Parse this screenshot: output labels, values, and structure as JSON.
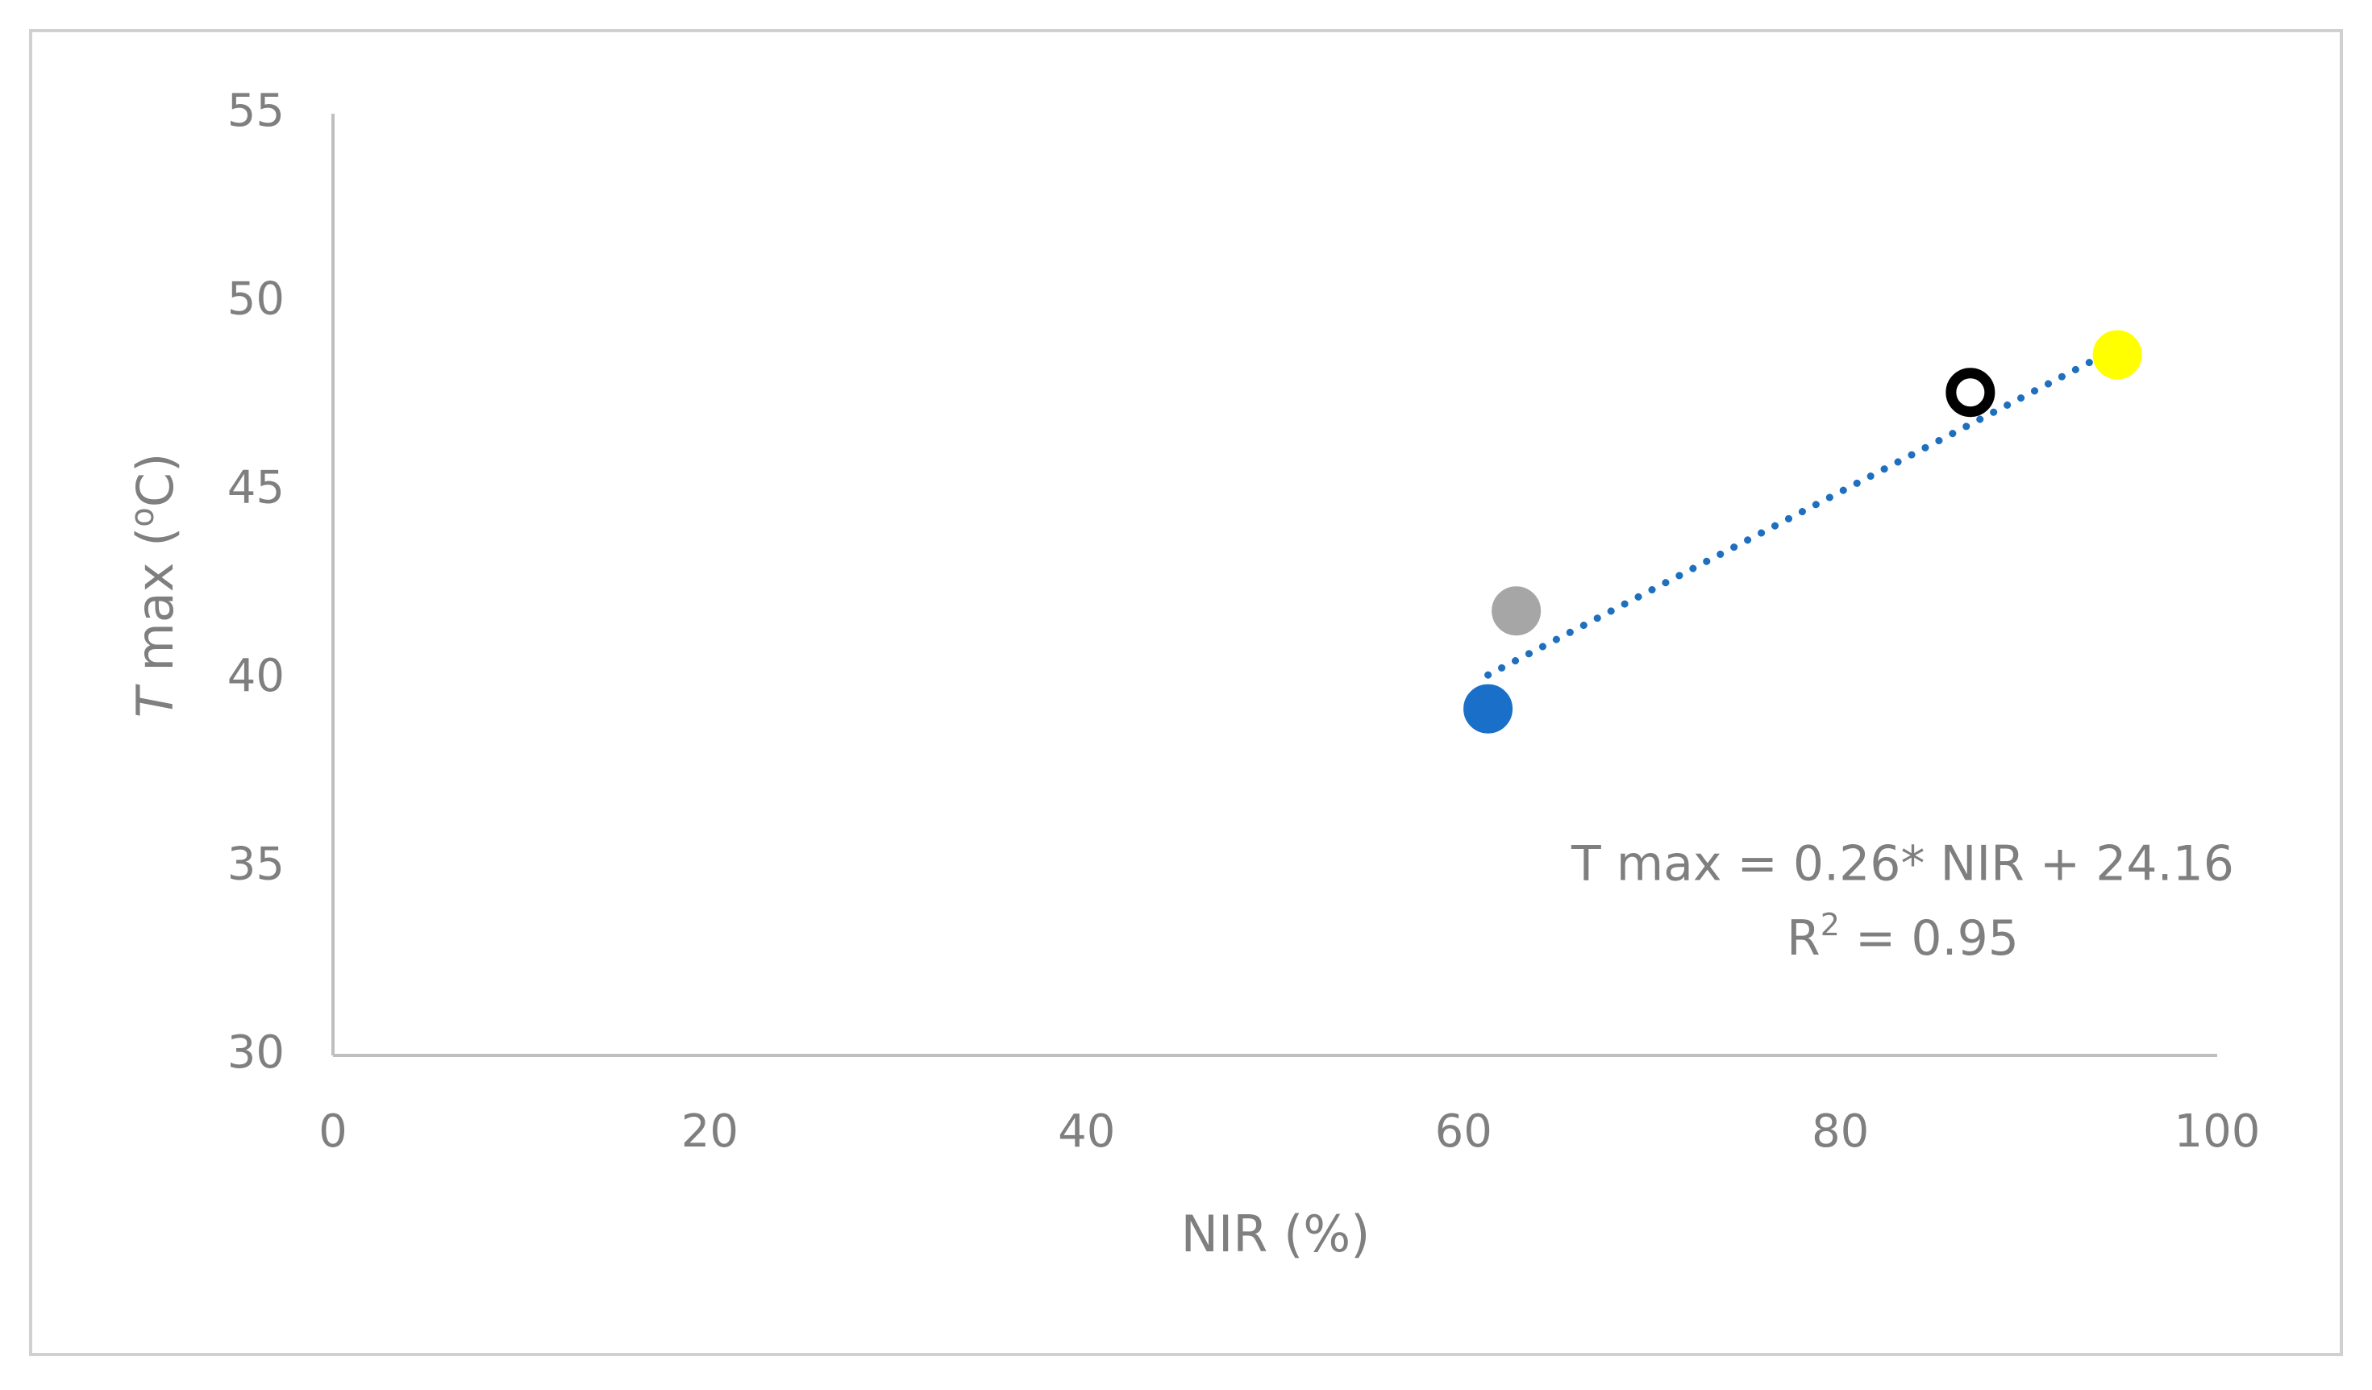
{
  "chart_data": {
    "type": "scatter",
    "xlabel": "NIR (%)",
    "ylabel": [
      "T",
      " max (",
      "o",
      "C)"
    ],
    "x": [
      61.3,
      62.8,
      86.9,
      94.7
    ],
    "values": [
      39.2,
      41.8,
      47.6,
      48.6
    ],
    "fills": [
      "#1a6fc9",
      "#a6a6a6",
      "#ffffff",
      "#ffff00"
    ],
    "strokes": [
      "#1a6fc9",
      "#a6a6a6",
      "#000000",
      "#ffff00"
    ],
    "trendline": {
      "slope": 0.26,
      "intercept": 24.16,
      "color": "#1f6fbf"
    },
    "equation": "T max = 0.26* NIR + 24.16",
    "r2": [
      "R",
      "2",
      " = 0.95"
    ],
    "xlim": [
      0,
      100
    ],
    "xticks": [
      0,
      20,
      40,
      60,
      80,
      100
    ],
    "ylim": [
      30,
      55
    ],
    "yticks": [
      30,
      35,
      40,
      45,
      50,
      55
    ],
    "grid": false
  }
}
